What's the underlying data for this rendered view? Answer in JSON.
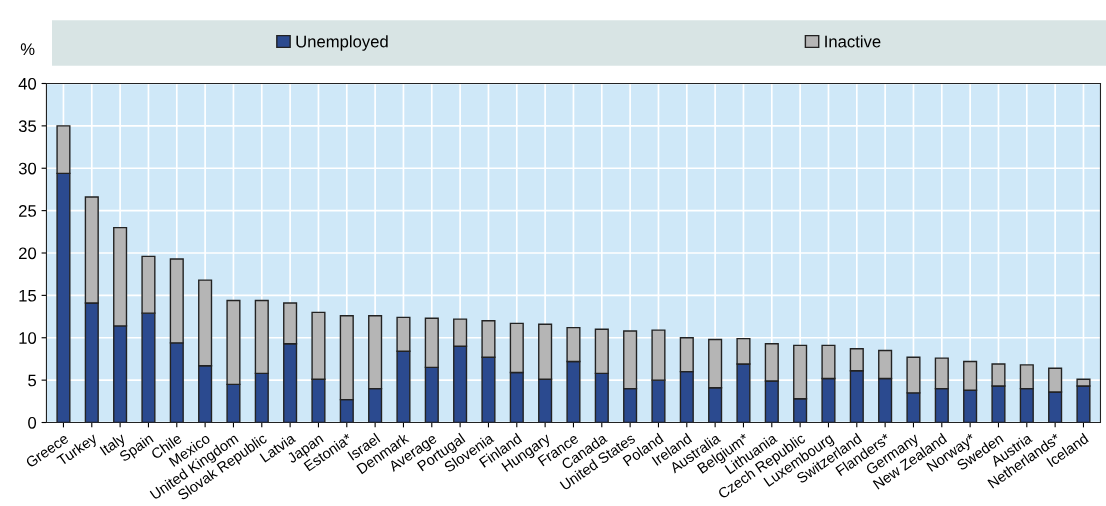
{
  "chart_data": {
    "type": "bar",
    "stacked": true,
    "ylabel": "%",
    "categories": [
      "Greece",
      "Turkey",
      "Italy",
      "Spain",
      "Chile",
      "Mexico",
      "United Kingdom",
      "Slovak Republic",
      "Latvia",
      "Japan",
      "Estonia*",
      "Israel",
      "Denmark",
      "Average",
      "Portugal",
      "Slovenia",
      "Finland",
      "Hungary",
      "France",
      "Canada",
      "United States",
      "Poland",
      "Ireland",
      "Australia",
      "Belgium*",
      "Lithuania",
      "Czech Republic",
      "Luxembourg",
      "Switzerland",
      "Flanders*",
      "Germany",
      "New Zealand",
      "Norway*",
      "Sweden",
      "Austria",
      "Netherlands*",
      "Iceland"
    ],
    "series": [
      {
        "name": "Unemployed",
        "color": "#2b4a8f",
        "values": [
          29.4,
          14.1,
          11.4,
          12.9,
          9.4,
          6.7,
          4.5,
          5.8,
          9.3,
          5.1,
          2.7,
          4.0,
          8.4,
          6.5,
          9.0,
          7.7,
          5.9,
          5.1,
          7.2,
          5.8,
          4.0,
          5.0,
          6.0,
          4.1,
          6.9,
          4.9,
          2.8,
          5.2,
          6.1,
          5.2,
          3.5,
          4.0,
          3.8,
          4.3,
          4.0,
          3.6,
          4.3
        ]
      },
      {
        "name": "Inactive",
        "color": "#b5b5b5",
        "values": [
          5.6,
          12.5,
          11.6,
          6.7,
          9.9,
          10.1,
          9.9,
          8.6,
          4.8,
          7.9,
          9.9,
          8.6,
          4.0,
          5.8,
          3.2,
          4.3,
          5.8,
          6.5,
          4.0,
          5.2,
          6.8,
          5.9,
          4.0,
          5.7,
          3.0,
          4.4,
          6.3,
          3.9,
          2.6,
          3.3,
          4.2,
          3.6,
          3.4,
          2.6,
          2.8,
          2.8,
          0.8
        ]
      }
    ],
    "ylim": [
      0,
      40
    ],
    "yticks": [
      0,
      5,
      10,
      15,
      20,
      25,
      30,
      35,
      40
    ],
    "grid": true,
    "legend": "top"
  }
}
